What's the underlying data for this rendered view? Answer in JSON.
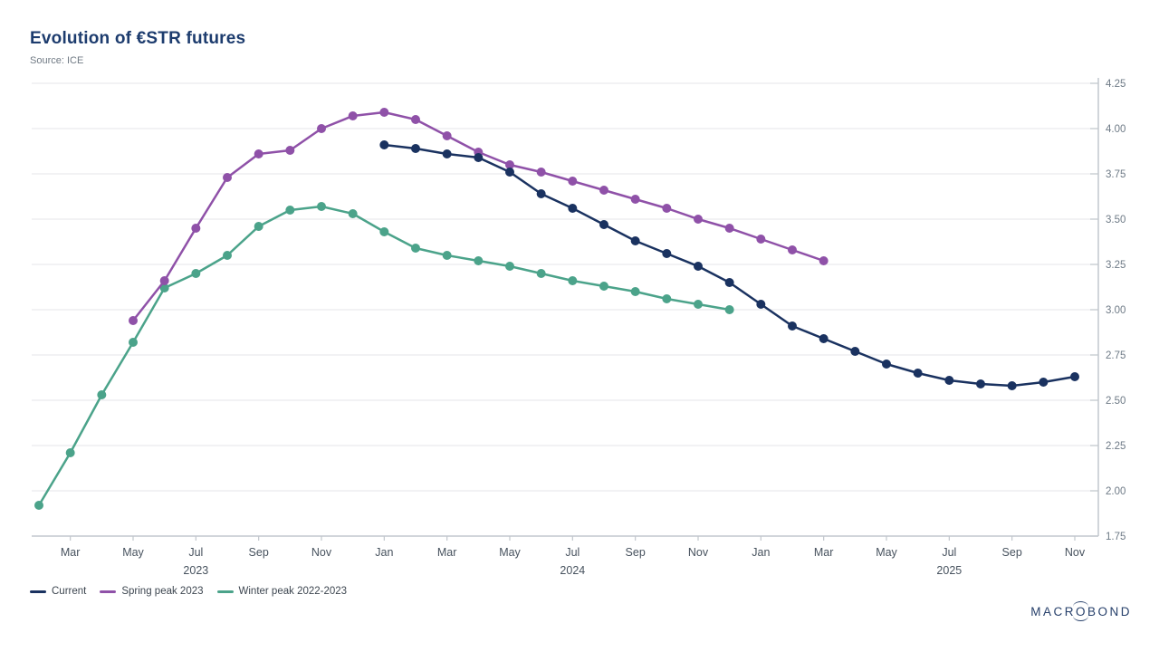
{
  "header": {
    "title": "Evolution of €STR futures",
    "source": "Source: ICE"
  },
  "chart_data": {
    "type": "line",
    "title": "Evolution of €STR futures",
    "source": "Source: ICE",
    "grid": "horizontal",
    "legend_position": "bottom-left",
    "x_axis": {
      "start_month": "Feb 2023",
      "end_month": "Nov 2025",
      "tick_labels": [
        {
          "label": "Mar",
          "month_index": 1
        },
        {
          "label": "May",
          "month_index": 3
        },
        {
          "label": "Jul",
          "month_index": 5
        },
        {
          "label": "Sep",
          "month_index": 7
        },
        {
          "label": "Nov",
          "month_index": 9
        },
        {
          "label": "Jan",
          "month_index": 11
        },
        {
          "label": "Mar",
          "month_index": 13
        },
        {
          "label": "May",
          "month_index": 15
        },
        {
          "label": "Jul",
          "month_index": 17
        },
        {
          "label": "Sep",
          "month_index": 19
        },
        {
          "label": "Nov",
          "month_index": 21
        },
        {
          "label": "Jan",
          "month_index": 23
        },
        {
          "label": "Mar",
          "month_index": 25
        },
        {
          "label": "May",
          "month_index": 27
        },
        {
          "label": "Jul",
          "month_index": 29
        },
        {
          "label": "Sep",
          "month_index": 31
        },
        {
          "label": "Nov",
          "month_index": 33
        }
      ],
      "year_labels": [
        {
          "label": "2023",
          "month_index": 5
        },
        {
          "label": "2024",
          "month_index": 17
        },
        {
          "label": "2025",
          "month_index": 29
        }
      ]
    },
    "y_axis": {
      "min": 1.75,
      "max": 4.25,
      "step": 0.25,
      "position": "right",
      "tick_labels": [
        "4.25",
        "4.00",
        "3.75",
        "3.50",
        "3.25",
        "3.00",
        "2.75",
        "2.50",
        "2.25",
        "2.00",
        "1.75"
      ]
    },
    "series": [
      {
        "name": "Winter peak 2022-2023",
        "color": "#4ba38a",
        "start_month": "Feb 2023",
        "start_index": 0,
        "values": [
          1.92,
          2.21,
          2.53,
          2.82,
          3.12,
          3.2,
          3.3,
          3.46,
          3.55,
          3.57,
          3.53,
          3.43,
          3.34,
          3.3,
          3.27,
          3.24,
          3.2,
          3.16,
          3.13,
          3.1,
          3.06,
          3.03,
          3.0
        ]
      },
      {
        "name": "Spring peak 2023",
        "color": "#8f51a8",
        "start_month": "May 2023",
        "start_index": 3,
        "values": [
          2.94,
          3.16,
          3.45,
          3.73,
          3.86,
          3.88,
          4.0,
          4.07,
          4.09,
          4.05,
          3.96,
          3.87,
          3.8,
          3.76,
          3.71,
          3.66,
          3.61,
          3.56,
          3.5,
          3.45,
          3.39,
          3.33,
          3.27
        ]
      },
      {
        "name": "Current",
        "color": "#1a3260",
        "start_month": "Jan 2024",
        "start_index": 11,
        "values": [
          3.91,
          3.89,
          3.86,
          3.84,
          3.76,
          3.64,
          3.56,
          3.47,
          3.38,
          3.31,
          3.24,
          3.15,
          3.03,
          2.91,
          2.84,
          2.77,
          2.7,
          2.65,
          2.61,
          2.59,
          2.58,
          2.6,
          2.63
        ]
      }
    ]
  },
  "legend": {
    "items": [
      {
        "label": "Current",
        "color": "#1a3260"
      },
      {
        "label": "Spring peak 2023",
        "color": "#8f51a8"
      },
      {
        "label": "Winter peak 2022-2023",
        "color": "#4ba38a"
      }
    ]
  },
  "footer": {
    "brand": {
      "pre": "MACR",
      "o": "O",
      "post": "BOND"
    }
  },
  "colors": {
    "title": "#1d3c6e",
    "source_text": "#707a84",
    "gridline": "#e9ebed",
    "axis_line": "#c2c7cd",
    "x_label": "#47525e",
    "y_label": "#6e7a86"
  }
}
